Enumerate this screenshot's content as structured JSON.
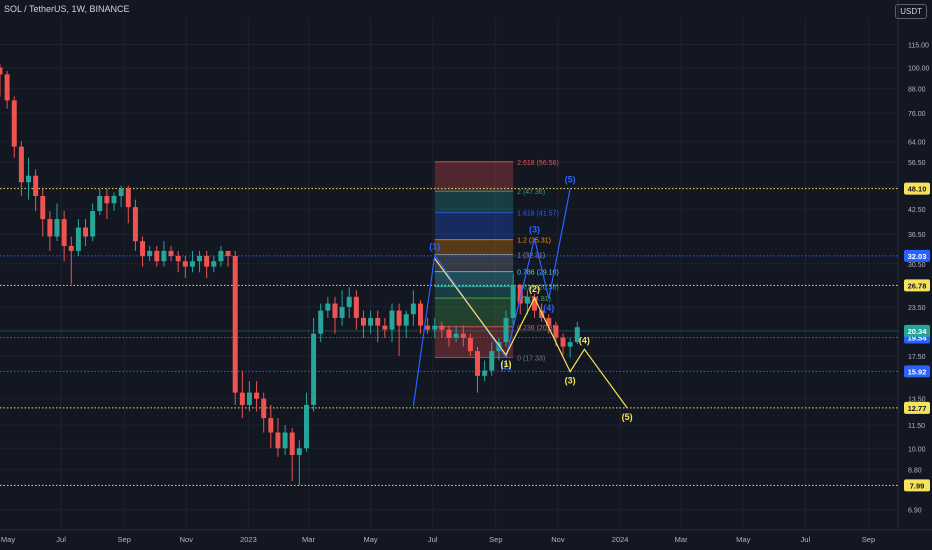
{
  "header": {
    "title": "SOL / TetherUS, 1W, BINANCE",
    "currency": "USDT"
  },
  "colors": {
    "bg": "#131722",
    "up": "#26a69a",
    "down": "#ef5350",
    "grid": "#1e222d",
    "yellow": "#f7e35b",
    "blue": "#2962ff",
    "axis_text": "#b2b5be"
  },
  "chart_data": {
    "type": "candlestick",
    "title": "SOL / TetherUS, 1W, BINANCE",
    "y_scale": "log",
    "ylim": [
      6.1,
      135
    ],
    "x_range": [
      "2022-05-02",
      "2024-09-30"
    ],
    "x_ticks": [
      {
        "label": "May",
        "date": "2022-05-01"
      },
      {
        "label": "Jul",
        "date": "2022-07-01"
      },
      {
        "label": "Sep",
        "date": "2022-09-01"
      },
      {
        "label": "Nov",
        "date": "2022-11-01"
      },
      {
        "label": "2023",
        "date": "2023-01-01"
      },
      {
        "label": "Mar",
        "date": "2023-03-01"
      },
      {
        "label": "May",
        "date": "2023-05-01"
      },
      {
        "label": "Jul",
        "date": "2023-07-01"
      },
      {
        "label": "Sep",
        "date": "2023-09-01"
      },
      {
        "label": "Nov",
        "date": "2023-11-01"
      },
      {
        "label": "2024",
        "date": "2024-01-01"
      },
      {
        "label": "Mar",
        "date": "2024-03-01"
      },
      {
        "label": "May",
        "date": "2024-05-01"
      },
      {
        "label": "Jul",
        "date": "2024-07-01"
      },
      {
        "label": "Sep",
        "date": "2024-09-01"
      }
    ],
    "y_ticks": [
      "115.00",
      "100.00",
      "88.00",
      "76.00",
      "64.00",
      "56.50",
      "48.50",
      "42.50",
      "36.50",
      "30.50",
      "23.50",
      "17.50",
      "13.50",
      "11.50",
      "10.00",
      "8.80",
      "6.90"
    ],
    "candles_start": "2022-05-02",
    "candles": [
      [
        100,
        96,
        102,
        84
      ],
      [
        96,
        82,
        98,
        78
      ],
      [
        82,
        62,
        84,
        58
      ],
      [
        62,
        50,
        64,
        46
      ],
      [
        50,
        52,
        58,
        45
      ],
      [
        52,
        46,
        54,
        42
      ],
      [
        46,
        40,
        48,
        36
      ],
      [
        40,
        36,
        42,
        33
      ],
      [
        36,
        40,
        44,
        35
      ],
      [
        40,
        34,
        42,
        31
      ],
      [
        34,
        33,
        36,
        27
      ],
      [
        33,
        38,
        40,
        32
      ],
      [
        38,
        36,
        40,
        34
      ],
      [
        36,
        42,
        44,
        35
      ],
      [
        42,
        46,
        48,
        41
      ],
      [
        46,
        44,
        48,
        40
      ],
      [
        44,
        46,
        47,
        42
      ],
      [
        46,
        48,
        49,
        43
      ],
      [
        48,
        43,
        49,
        39
      ],
      [
        43,
        35,
        45,
        33
      ],
      [
        35,
        32,
        36,
        30
      ],
      [
        32,
        33,
        34,
        31
      ],
      [
        33,
        31,
        34,
        30
      ],
      [
        31,
        33,
        35,
        30
      ],
      [
        33,
        32,
        34,
        31
      ],
      [
        32,
        31,
        33,
        29
      ],
      [
        31,
        30,
        32,
        28
      ],
      [
        30,
        31,
        33,
        29
      ],
      [
        31,
        32,
        33,
        29
      ],
      [
        32,
        30,
        33,
        28
      ],
      [
        30,
        31,
        32,
        29
      ],
      [
        31,
        33,
        34,
        30
      ],
      [
        33,
        32,
        33,
        30
      ],
      [
        32,
        14,
        33,
        13
      ],
      [
        14,
        13,
        16,
        12
      ],
      [
        13,
        14,
        15,
        12.5
      ],
      [
        14,
        13.5,
        15,
        12.5
      ],
      [
        13.5,
        12,
        14,
        11
      ],
      [
        12,
        11,
        13,
        10
      ],
      [
        11,
        10,
        12,
        9.5
      ],
      [
        10,
        11,
        11.5,
        9.6
      ],
      [
        11,
        9.6,
        11.3,
        8.2
      ],
      [
        9.6,
        10,
        10.5,
        7.99
      ],
      [
        10,
        13,
        14,
        9.8
      ],
      [
        13,
        20,
        22,
        12.5
      ],
      [
        20,
        23,
        24,
        19
      ],
      [
        23,
        24,
        25,
        22
      ],
      [
        24,
        22,
        25,
        20
      ],
      [
        22,
        23.5,
        26,
        21
      ],
      [
        23.5,
        25,
        26.5,
        22
      ],
      [
        25,
        22,
        26,
        20.5
      ],
      [
        22,
        21,
        23,
        19.5
      ],
      [
        21,
        22,
        23,
        20
      ],
      [
        22,
        21,
        23,
        19
      ],
      [
        21,
        20.5,
        22,
        19.5
      ],
      [
        20.5,
        23,
        24,
        19
      ],
      [
        23,
        21,
        24,
        17.5
      ],
      [
        21,
        22.5,
        23,
        19.5
      ],
      [
        22.5,
        24,
        26,
        21
      ],
      [
        24,
        21,
        24.5,
        20
      ],
      [
        21,
        20.5,
        22,
        20
      ],
      [
        20.5,
        21,
        22,
        19.5
      ],
      [
        21,
        20.5,
        21.5,
        19.5
      ],
      [
        20.5,
        19.5,
        21,
        18.5
      ],
      [
        19.5,
        20,
        21,
        19
      ],
      [
        20,
        19.5,
        21,
        18.5
      ],
      [
        19.5,
        18,
        20,
        17.5
      ],
      [
        18,
        15.5,
        18.5,
        14
      ],
      [
        15.5,
        16,
        17,
        15
      ],
      [
        16,
        18,
        19,
        15.5
      ],
      [
        18,
        19,
        19.5,
        17
      ],
      [
        19,
        22,
        23,
        18.5
      ],
      [
        22,
        26.8,
        28.8,
        21
      ],
      [
        26.8,
        24,
        27,
        22.5
      ],
      [
        24,
        25,
        26,
        22.5
      ],
      [
        25,
        23,
        25.5,
        22
      ],
      [
        23,
        22,
        24,
        21.5
      ],
      [
        22,
        21,
        22.5,
        20
      ],
      [
        21,
        19.5,
        21.5,
        18.5
      ],
      [
        19.5,
        18.5,
        20,
        17.6
      ],
      [
        18.5,
        19,
        19.5,
        17.3
      ],
      [
        19,
        20.8,
        21.5,
        18.8
      ]
    ],
    "horizontal_levels": [
      {
        "value": 48.1,
        "label": "48.10",
        "color": "#f7e35b",
        "style": "dotted"
      },
      {
        "value": 32.03,
        "label": "32.03",
        "color": "#2962ff",
        "style": "dotted"
      },
      {
        "value": 26.78,
        "label": "26.78",
        "color": "#f7e35b",
        "style": "dotted"
      },
      {
        "value": 19.54,
        "label": "19.54",
        "color": "#2962ff",
        "style": "dotted"
      },
      {
        "value": 15.92,
        "label": "15.92",
        "color": "#2962ff",
        "style": "dotted"
      },
      {
        "value": 12.77,
        "label": "12.77",
        "color": "#f7e35b",
        "style": "dotted"
      },
      {
        "value": 7.99,
        "label": "7.99",
        "color": "#f7e35b",
        "style": "dotted"
      }
    ],
    "current_price": {
      "value": 20.34,
      "label": "20.34",
      "color": "#26a69a"
    },
    "fib_levels": [
      {
        "label": "2.618 (56.56)",
        "value": 56.56,
        "color": "#ef5350"
      },
      {
        "label": "2 (47.36)",
        "value": 47.36,
        "color": "#26a69a"
      },
      {
        "label": "1.618 (41.57)",
        "value": 41.57,
        "color": "#2962ff"
      },
      {
        "label": "1.2 (35.31)",
        "value": 35.31,
        "color": "#ff9800"
      },
      {
        "label": "1 (32.31)",
        "value": 32.31,
        "color": "#9598a1"
      },
      {
        "label": "0.786 (29.10)",
        "value": 29.1,
        "color": "#4dd0e1"
      },
      {
        "label": "0.618 (26.58)",
        "value": 26.58,
        "color": "#26a69a"
      },
      {
        "label": "0.5 (24.81)",
        "value": 24.81,
        "color": "#4caf50"
      },
      {
        "label": "0.236 (20.85)",
        "value": 20.85,
        "color": "#ef5350"
      },
      {
        "label": "0 (17.33)",
        "value": 17.33,
        "color": "#787b86"
      }
    ],
    "fib_x": [
      "2023-07-03",
      "2023-09-18"
    ],
    "wave_blue": [
      {
        "date": "2023-06-12",
        "value": 12.9,
        "label": ""
      },
      {
        "date": "2023-07-03",
        "value": 32.1,
        "label": "(1)"
      },
      {
        "date": "2023-09-11",
        "value": 17.33,
        "label": "(2)"
      },
      {
        "date": "2023-10-09",
        "value": 35.6,
        "label": "(3)"
      },
      {
        "date": "2023-10-23",
        "value": 24.7,
        "label": "(4)"
      },
      {
        "date": "2023-11-13",
        "value": 48.1,
        "label": "(5)"
      }
    ],
    "wave_yellow": [
      {
        "date": "2023-07-03",
        "value": 31.5,
        "label": ""
      },
      {
        "date": "2023-09-11",
        "value": 17.6,
        "label": "(1)"
      },
      {
        "date": "2023-10-09",
        "value": 24.8,
        "label": "(2)"
      },
      {
        "date": "2023-11-13",
        "value": 15.9,
        "label": "(3)"
      },
      {
        "date": "2023-11-27",
        "value": 18.2,
        "label": "(4)"
      },
      {
        "date": "2024-01-08",
        "value": 12.77,
        "label": "(5)"
      }
    ]
  }
}
